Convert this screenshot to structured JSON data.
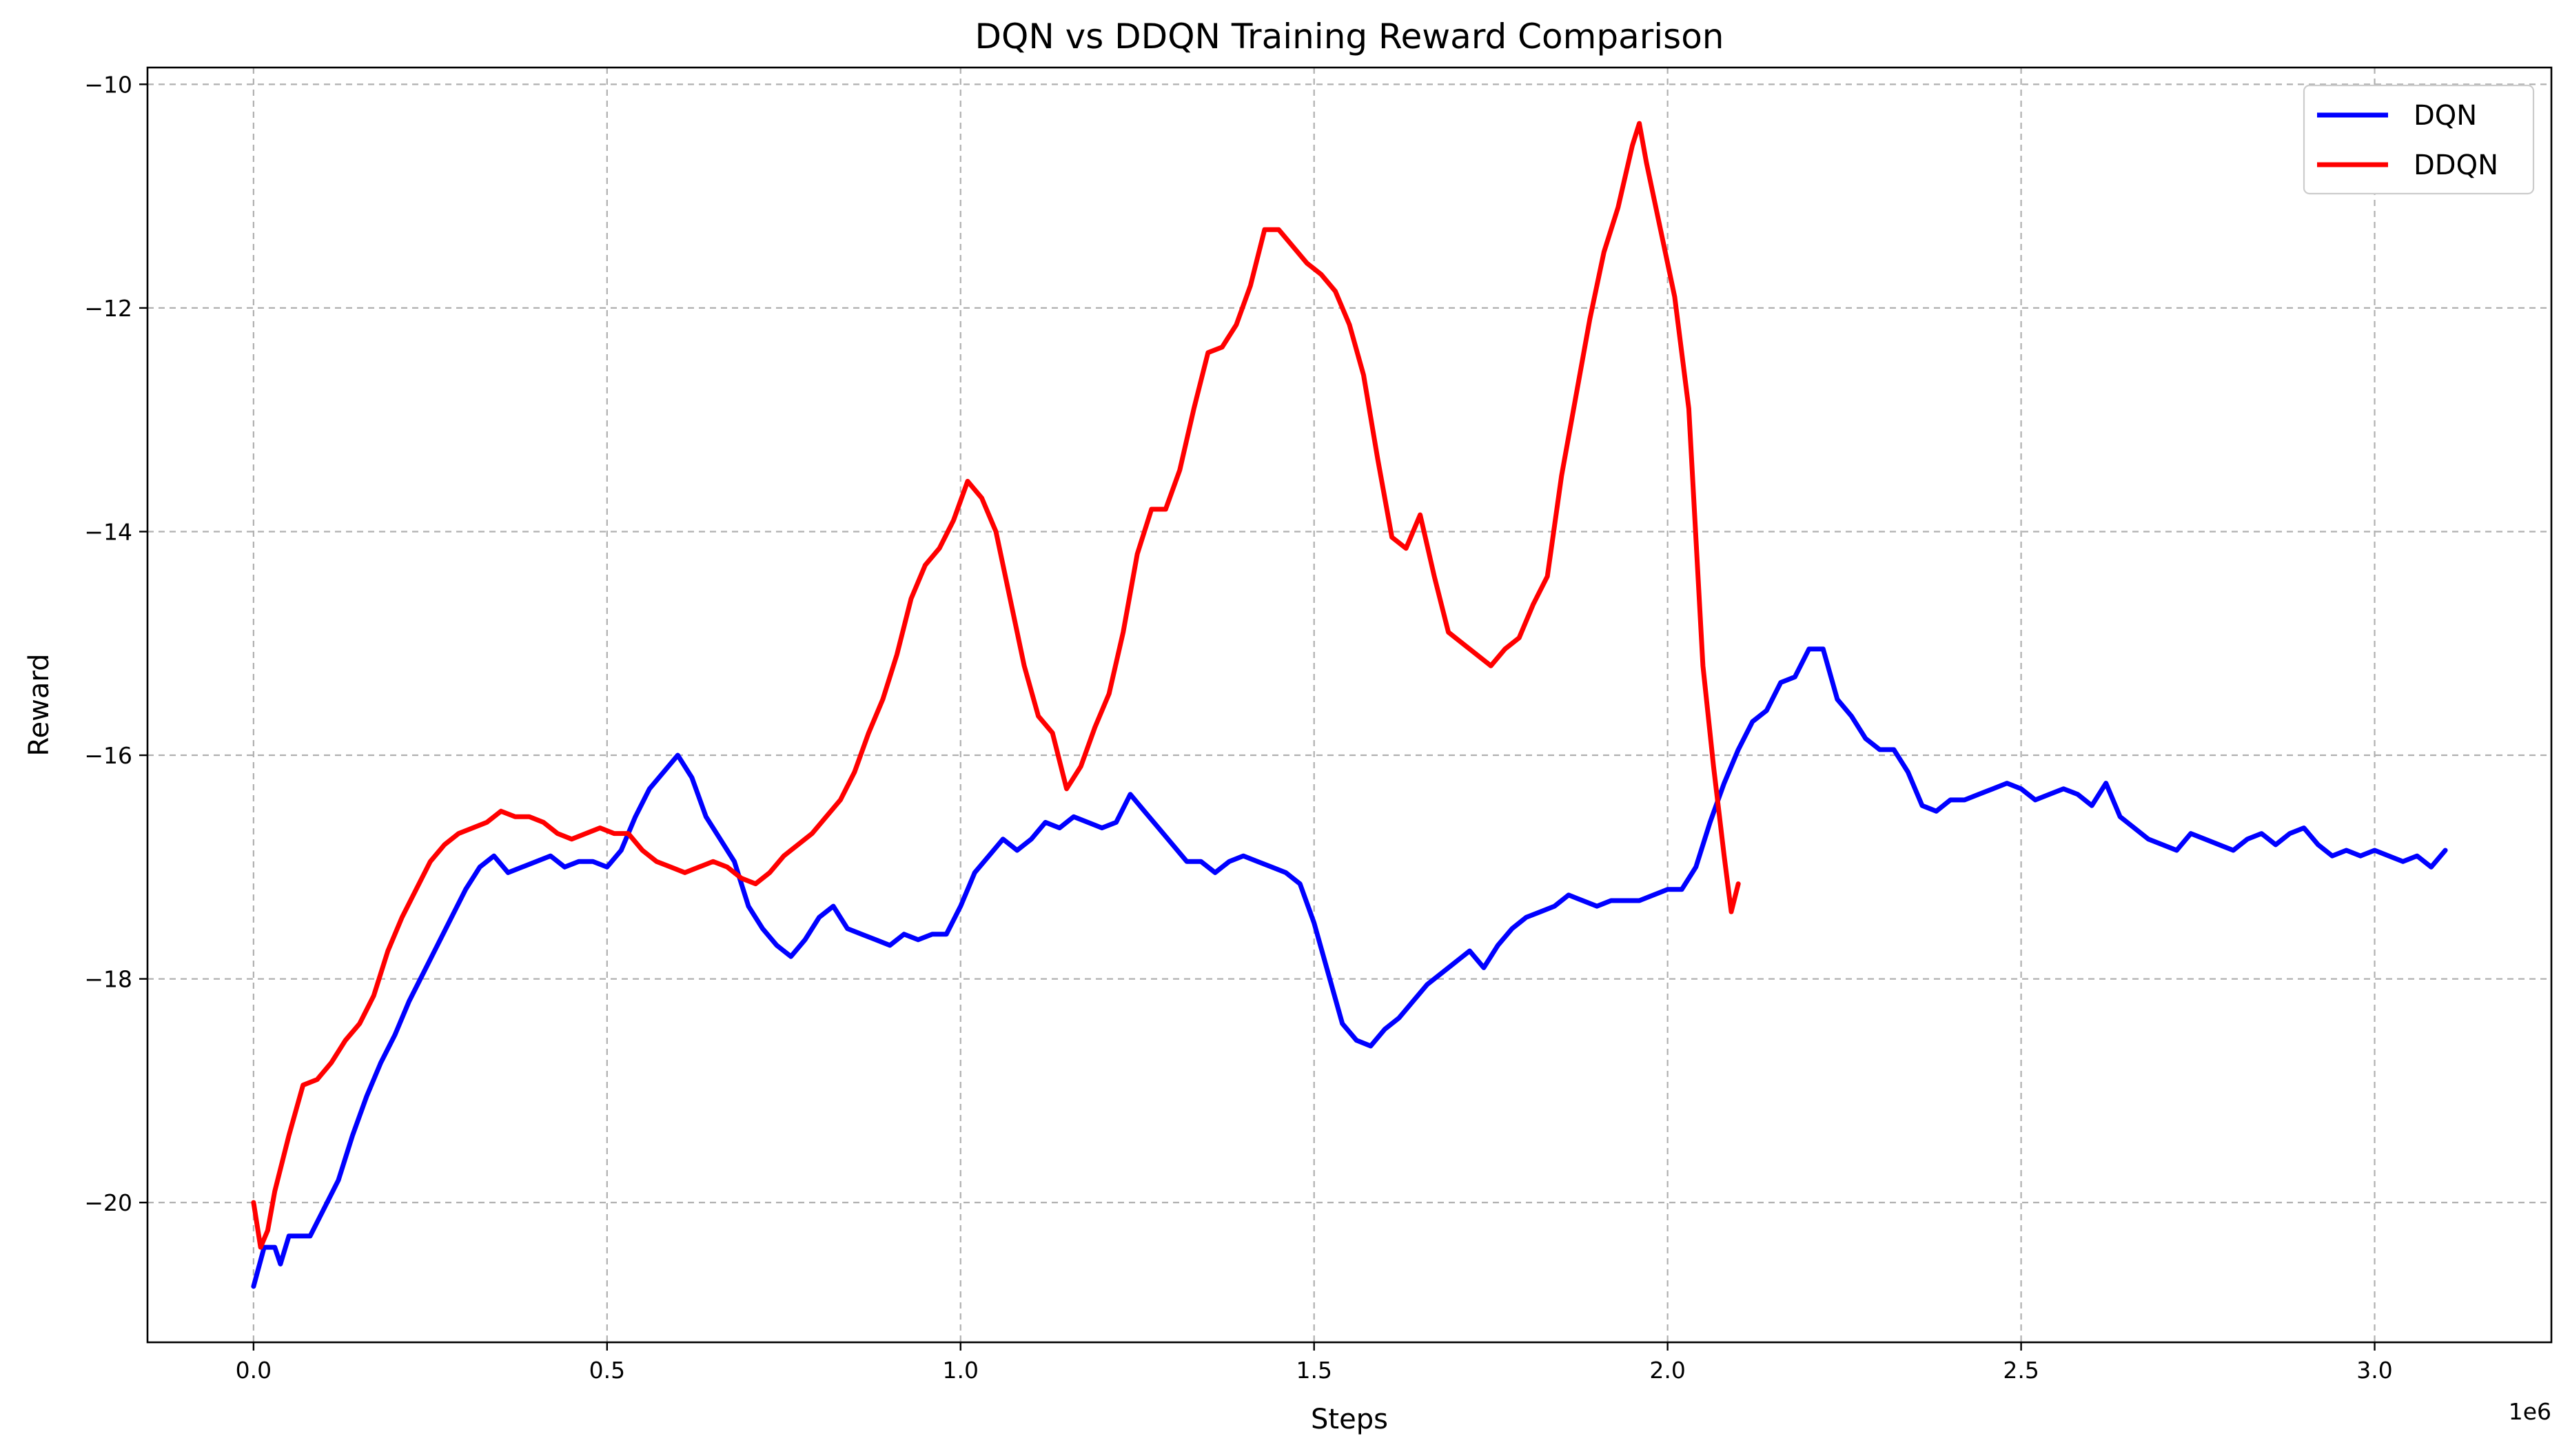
{
  "chart_data": {
    "type": "line",
    "title": "DQN vs DDQN Training Reward Comparison",
    "xlabel": "Steps",
    "ylabel": "Reward",
    "x_offset_text": "1e6",
    "xlim": [
      -150000,
      3250000
    ],
    "ylim": [
      -21.25,
      -9.85
    ],
    "xticks": [
      0,
      500000,
      1000000,
      1500000,
      2000000,
      2500000,
      3000000
    ],
    "xtick_labels": [
      "0.0",
      "0.5",
      "1.0",
      "1.5",
      "2.0",
      "2.5",
      "3.0"
    ],
    "yticks": [
      -20,
      -18,
      -16,
      -14,
      -12,
      -10
    ],
    "ytick_labels": [
      "−20",
      "−18",
      "−16",
      "−14",
      "−12",
      "−10"
    ],
    "grid": true,
    "legend": "upper right",
    "series": [
      {
        "name": "DQN",
        "color": "#0000ff",
        "points": [
          [
            0,
            -20.75
          ],
          [
            15000,
            -20.4
          ],
          [
            30000,
            -20.4
          ],
          [
            38000,
            -20.55
          ],
          [
            50000,
            -20.3
          ],
          [
            80000,
            -20.3
          ],
          [
            100000,
            -20.05
          ],
          [
            120000,
            -19.8
          ],
          [
            140000,
            -19.4
          ],
          [
            160000,
            -19.05
          ],
          [
            180000,
            -18.75
          ],
          [
            200000,
            -18.5
          ],
          [
            220000,
            -18.2
          ],
          [
            240000,
            -17.95
          ],
          [
            260000,
            -17.7
          ],
          [
            280000,
            -17.45
          ],
          [
            300000,
            -17.2
          ],
          [
            320000,
            -17.0
          ],
          [
            340000,
            -16.9
          ],
          [
            360000,
            -17.05
          ],
          [
            380000,
            -17.0
          ],
          [
            400000,
            -16.95
          ],
          [
            420000,
            -16.9
          ],
          [
            440000,
            -17.0
          ],
          [
            460000,
            -16.95
          ],
          [
            480000,
            -16.95
          ],
          [
            500000,
            -17.0
          ],
          [
            520000,
            -16.85
          ],
          [
            540000,
            -16.55
          ],
          [
            560000,
            -16.3
          ],
          [
            580000,
            -16.15
          ],
          [
            600000,
            -16.0
          ],
          [
            620000,
            -16.2
          ],
          [
            640000,
            -16.55
          ],
          [
            660000,
            -16.75
          ],
          [
            680000,
            -16.95
          ],
          [
            700000,
            -17.35
          ],
          [
            720000,
            -17.55
          ],
          [
            740000,
            -17.7
          ],
          [
            760000,
            -17.8
          ],
          [
            780000,
            -17.65
          ],
          [
            800000,
            -17.45
          ],
          [
            820000,
            -17.35
          ],
          [
            840000,
            -17.55
          ],
          [
            860000,
            -17.6
          ],
          [
            880000,
            -17.65
          ],
          [
            900000,
            -17.7
          ],
          [
            920000,
            -17.6
          ],
          [
            940000,
            -17.65
          ],
          [
            960000,
            -17.6
          ],
          [
            980000,
            -17.6
          ],
          [
            1000000,
            -17.35
          ],
          [
            1020000,
            -17.05
          ],
          [
            1040000,
            -16.9
          ],
          [
            1060000,
            -16.75
          ],
          [
            1080000,
            -16.85
          ],
          [
            1100000,
            -16.75
          ],
          [
            1120000,
            -16.6
          ],
          [
            1140000,
            -16.65
          ],
          [
            1160000,
            -16.55
          ],
          [
            1180000,
            -16.6
          ],
          [
            1200000,
            -16.65
          ],
          [
            1220000,
            -16.6
          ],
          [
            1240000,
            -16.35
          ],
          [
            1260000,
            -16.5
          ],
          [
            1280000,
            -16.65
          ],
          [
            1300000,
            -16.8
          ],
          [
            1320000,
            -16.95
          ],
          [
            1340000,
            -16.95
          ],
          [
            1360000,
            -17.05
          ],
          [
            1380000,
            -16.95
          ],
          [
            1400000,
            -16.9
          ],
          [
            1420000,
            -16.95
          ],
          [
            1440000,
            -17.0
          ],
          [
            1460000,
            -17.05
          ],
          [
            1480000,
            -17.15
          ],
          [
            1500000,
            -17.5
          ],
          [
            1520000,
            -17.95
          ],
          [
            1540000,
            -18.4
          ],
          [
            1560000,
            -18.55
          ],
          [
            1580000,
            -18.6
          ],
          [
            1600000,
            -18.45
          ],
          [
            1620000,
            -18.35
          ],
          [
            1640000,
            -18.2
          ],
          [
            1660000,
            -18.05
          ],
          [
            1680000,
            -17.95
          ],
          [
            1700000,
            -17.85
          ],
          [
            1720000,
            -17.75
          ],
          [
            1740000,
            -17.9
          ],
          [
            1760000,
            -17.7
          ],
          [
            1780000,
            -17.55
          ],
          [
            1800000,
            -17.45
          ],
          [
            1820000,
            -17.4
          ],
          [
            1840000,
            -17.35
          ],
          [
            1860000,
            -17.25
          ],
          [
            1880000,
            -17.3
          ],
          [
            1900000,
            -17.35
          ],
          [
            1920000,
            -17.3
          ],
          [
            1940000,
            -17.3
          ],
          [
            1960000,
            -17.3
          ],
          [
            1980000,
            -17.25
          ],
          [
            2000000,
            -17.2
          ],
          [
            2020000,
            -17.2
          ],
          [
            2040000,
            -17.0
          ],
          [
            2060000,
            -16.6
          ],
          [
            2080000,
            -16.25
          ],
          [
            2100000,
            -15.95
          ],
          [
            2120000,
            -15.7
          ],
          [
            2140000,
            -15.6
          ],
          [
            2160000,
            -15.35
          ],
          [
            2180000,
            -15.3
          ],
          [
            2200000,
            -15.05
          ],
          [
            2220000,
            -15.05
          ],
          [
            2240000,
            -15.5
          ],
          [
            2260000,
            -15.65
          ],
          [
            2280000,
            -15.85
          ],
          [
            2300000,
            -15.95
          ],
          [
            2320000,
            -15.95
          ],
          [
            2340000,
            -16.15
          ],
          [
            2360000,
            -16.45
          ],
          [
            2380000,
            -16.5
          ],
          [
            2400000,
            -16.4
          ],
          [
            2420000,
            -16.4
          ],
          [
            2440000,
            -16.35
          ],
          [
            2460000,
            -16.3
          ],
          [
            2480000,
            -16.25
          ],
          [
            2500000,
            -16.3
          ],
          [
            2520000,
            -16.4
          ],
          [
            2540000,
            -16.35
          ],
          [
            2560000,
            -16.3
          ],
          [
            2580000,
            -16.35
          ],
          [
            2600000,
            -16.45
          ],
          [
            2620000,
            -16.25
          ],
          [
            2640000,
            -16.55
          ],
          [
            2660000,
            -16.65
          ],
          [
            2680000,
            -16.75
          ],
          [
            2700000,
            -16.8
          ],
          [
            2720000,
            -16.85
          ],
          [
            2740000,
            -16.7
          ],
          [
            2760000,
            -16.75
          ],
          [
            2780000,
            -16.8
          ],
          [
            2800000,
            -16.85
          ],
          [
            2820000,
            -16.75
          ],
          [
            2840000,
            -16.7
          ],
          [
            2860000,
            -16.8
          ],
          [
            2880000,
            -16.7
          ],
          [
            2900000,
            -16.65
          ],
          [
            2920000,
            -16.8
          ],
          [
            2940000,
            -16.9
          ],
          [
            2960000,
            -16.85
          ],
          [
            2980000,
            -16.9
          ],
          [
            3000000,
            -16.85
          ],
          [
            3020000,
            -16.9
          ],
          [
            3040000,
            -16.95
          ],
          [
            3060000,
            -16.9
          ],
          [
            3080000,
            -17.0
          ],
          [
            3100000,
            -16.85
          ]
        ]
      },
      {
        "name": "DDQN",
        "color": "#ff0000",
        "points": [
          [
            0,
            -20.0
          ],
          [
            10000,
            -20.4
          ],
          [
            20000,
            -20.25
          ],
          [
            30000,
            -19.9
          ],
          [
            50000,
            -19.4
          ],
          [
            70000,
            -18.95
          ],
          [
            90000,
            -18.9
          ],
          [
            110000,
            -18.75
          ],
          [
            130000,
            -18.55
          ],
          [
            150000,
            -18.4
          ],
          [
            170000,
            -18.15
          ],
          [
            190000,
            -17.75
          ],
          [
            210000,
            -17.45
          ],
          [
            230000,
            -17.2
          ],
          [
            250000,
            -16.95
          ],
          [
            270000,
            -16.8
          ],
          [
            290000,
            -16.7
          ],
          [
            310000,
            -16.65
          ],
          [
            330000,
            -16.6
          ],
          [
            350000,
            -16.5
          ],
          [
            370000,
            -16.55
          ],
          [
            390000,
            -16.55
          ],
          [
            410000,
            -16.6
          ],
          [
            430000,
            -16.7
          ],
          [
            450000,
            -16.75
          ],
          [
            470000,
            -16.7
          ],
          [
            490000,
            -16.65
          ],
          [
            510000,
            -16.7
          ],
          [
            530000,
            -16.7
          ],
          [
            550000,
            -16.85
          ],
          [
            570000,
            -16.95
          ],
          [
            590000,
            -17.0
          ],
          [
            610000,
            -17.05
          ],
          [
            630000,
            -17.0
          ],
          [
            650000,
            -16.95
          ],
          [
            670000,
            -17.0
          ],
          [
            690000,
            -17.1
          ],
          [
            710000,
            -17.15
          ],
          [
            730000,
            -17.05
          ],
          [
            750000,
            -16.9
          ],
          [
            770000,
            -16.8
          ],
          [
            790000,
            -16.7
          ],
          [
            810000,
            -16.55
          ],
          [
            830000,
            -16.4
          ],
          [
            850000,
            -16.15
          ],
          [
            870000,
            -15.8
          ],
          [
            890000,
            -15.5
          ],
          [
            910000,
            -15.1
          ],
          [
            930000,
            -14.6
          ],
          [
            950000,
            -14.3
          ],
          [
            970000,
            -14.15
          ],
          [
            990000,
            -13.9
          ],
          [
            1010000,
            -13.55
          ],
          [
            1030000,
            -13.7
          ],
          [
            1050000,
            -14.0
          ],
          [
            1070000,
            -14.6
          ],
          [
            1090000,
            -15.2
          ],
          [
            1110000,
            -15.65
          ],
          [
            1130000,
            -15.8
          ],
          [
            1150000,
            -16.3
          ],
          [
            1170000,
            -16.1
          ],
          [
            1190000,
            -15.75
          ],
          [
            1210000,
            -15.45
          ],
          [
            1230000,
            -14.9
          ],
          [
            1250000,
            -14.2
          ],
          [
            1270000,
            -13.8
          ],
          [
            1290000,
            -13.8
          ],
          [
            1310000,
            -13.45
          ],
          [
            1330000,
            -12.9
          ],
          [
            1350000,
            -12.4
          ],
          [
            1370000,
            -12.35
          ],
          [
            1390000,
            -12.15
          ],
          [
            1410000,
            -11.8
          ],
          [
            1430000,
            -11.3
          ],
          [
            1450000,
            -11.3
          ],
          [
            1470000,
            -11.45
          ],
          [
            1490000,
            -11.6
          ],
          [
            1510000,
            -11.7
          ],
          [
            1530000,
            -11.85
          ],
          [
            1550000,
            -12.15
          ],
          [
            1570000,
            -12.6
          ],
          [
            1590000,
            -13.35
          ],
          [
            1610000,
            -14.05
          ],
          [
            1630000,
            -14.15
          ],
          [
            1650000,
            -13.85
          ],
          [
            1670000,
            -14.4
          ],
          [
            1690000,
            -14.9
          ],
          [
            1710000,
            -15.0
          ],
          [
            1730000,
            -15.1
          ],
          [
            1750000,
            -15.2
          ],
          [
            1770000,
            -15.05
          ],
          [
            1790000,
            -14.95
          ],
          [
            1810000,
            -14.65
          ],
          [
            1830000,
            -14.4
          ],
          [
            1850000,
            -13.5
          ],
          [
            1870000,
            -12.8
          ],
          [
            1890000,
            -12.1
          ],
          [
            1910000,
            -11.5
          ],
          [
            1930000,
            -11.1
          ],
          [
            1950000,
            -10.55
          ],
          [
            1960000,
            -10.35
          ],
          [
            1970000,
            -10.7
          ],
          [
            1990000,
            -11.3
          ],
          [
            2010000,
            -11.9
          ],
          [
            2030000,
            -12.9
          ],
          [
            2050000,
            -15.2
          ],
          [
            2065000,
            -16.1
          ],
          [
            2080000,
            -16.9
          ],
          [
            2090000,
            -17.4
          ],
          [
            2100000,
            -17.15
          ]
        ]
      }
    ]
  }
}
